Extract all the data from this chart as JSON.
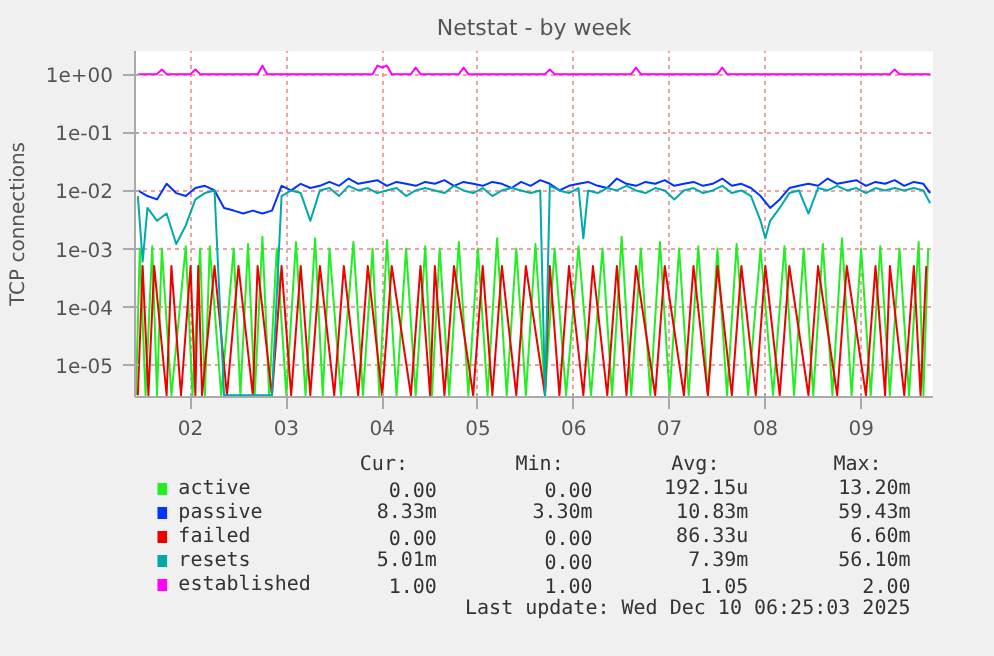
{
  "chart_data": {
    "type": "line",
    "title": "Netstat - by week",
    "ylabel": "TCP connections",
    "log": true,
    "grid": true,
    "legend": "bottom",
    "line_style": "solid",
    "marker": "none",
    "xlim": [
      1.92,
      10.25
    ],
    "xticks": [
      {
        "value": 2.5,
        "label": "02"
      },
      {
        "value": 3.5,
        "label": "03"
      },
      {
        "value": 4.5,
        "label": "04"
      },
      {
        "value": 5.5,
        "label": "05"
      },
      {
        "value": 6.5,
        "label": "06"
      },
      {
        "value": 7.5,
        "label": "07"
      },
      {
        "value": 8.5,
        "label": "08"
      },
      {
        "value": 9.5,
        "label": "09"
      }
    ],
    "ylim": [
      2.8e-06,
      2.5
    ],
    "yticks": [
      {
        "value": 1e-05,
        "label": "1e-05"
      },
      {
        "value": 0.0001,
        "label": "1e-04"
      },
      {
        "value": 0.001,
        "label": "1e-03"
      },
      {
        "value": 0.01,
        "label": "1e-02"
      },
      {
        "value": 0.1,
        "label": "1e-01"
      },
      {
        "value": 1,
        "label": "1e+00"
      }
    ],
    "series": [
      {
        "name": "active",
        "color": "#22ee22",
        "x": [
          1.93,
          1.97,
          2.03,
          2.1,
          2.15,
          2.2,
          2.3,
          2.45,
          2.52,
          2.6,
          2.65,
          2.7,
          2.82,
          2.95,
          3.02,
          3.1,
          3.17,
          3.25,
          3.32,
          3.4,
          3.5,
          3.6,
          3.7,
          3.8,
          3.88,
          3.95,
          4.07,
          4.2,
          4.3,
          4.4,
          4.47,
          4.55,
          4.65,
          4.75,
          4.85,
          4.95,
          5.02,
          5.1,
          5.2,
          5.3,
          5.4,
          5.5,
          5.6,
          5.7,
          5.8,
          5.9,
          6.0,
          6.1,
          6.2,
          6.3,
          6.42,
          6.55,
          6.68,
          6.8,
          6.9,
          7.0,
          7.1,
          7.2,
          7.3,
          7.4,
          7.5,
          7.6,
          7.7,
          7.8,
          7.9,
          8.0,
          8.1,
          8.2,
          8.32,
          8.45,
          8.58,
          8.7,
          8.8,
          8.9,
          9.0,
          9.1,
          9.2,
          9.3,
          9.4,
          9.5,
          9.6,
          9.7,
          9.8,
          9.9,
          10.0,
          10.1,
          10.15,
          10.2
        ],
        "values": [
          3e-06,
          0.001,
          3e-06,
          0.0011,
          3e-06,
          0.001,
          3e-06,
          0.0011,
          3e-06,
          0.001,
          3e-06,
          0.0011,
          3e-06,
          0.001,
          3e-06,
          0.0012,
          3e-06,
          0.0016,
          3e-06,
          0.001,
          3e-06,
          0.0013,
          3e-06,
          0.0015,
          3e-06,
          0.001,
          3e-06,
          0.0013,
          3e-06,
          0.001,
          3e-06,
          0.0014,
          3e-06,
          0.001,
          3e-06,
          0.0011,
          3e-06,
          0.001,
          3e-06,
          0.0013,
          3e-06,
          0.001,
          3e-06,
          0.0015,
          3e-06,
          0.001,
          3e-06,
          0.0012,
          3e-06,
          0.001,
          3e-06,
          0.0011,
          3e-06,
          0.001,
          3e-06,
          0.0016,
          3e-06,
          0.001,
          3e-06,
          0.0013,
          3e-06,
          0.001,
          3e-06,
          0.0011,
          3e-06,
          0.001,
          3e-06,
          0.0012,
          3e-06,
          0.001,
          3e-06,
          0.0011,
          3e-06,
          0.001,
          3e-06,
          0.0012,
          3e-06,
          0.0015,
          3e-06,
          0.001,
          3e-06,
          0.0011,
          3e-06,
          0.001,
          3e-06,
          0.0013,
          3e-06,
          0.001
        ]
      },
      {
        "name": "passive",
        "color": "#0033ff",
        "x": [
          1.95,
          2.05,
          2.15,
          2.25,
          2.35,
          2.45,
          2.55,
          2.65,
          2.75,
          2.85,
          2.95,
          3.05,
          3.15,
          3.25,
          3.35,
          3.45,
          3.55,
          3.65,
          3.75,
          3.85,
          3.95,
          4.05,
          4.15,
          4.25,
          4.35,
          4.45,
          4.55,
          4.65,
          4.75,
          4.85,
          4.95,
          5.05,
          5.15,
          5.25,
          5.35,
          5.45,
          5.55,
          5.65,
          5.75,
          5.85,
          5.95,
          6.05,
          6.15,
          6.25,
          6.35,
          6.45,
          6.55,
          6.65,
          6.75,
          6.85,
          6.95,
          7.05,
          7.15,
          7.25,
          7.35,
          7.45,
          7.55,
          7.65,
          7.75,
          7.85,
          7.95,
          8.05,
          8.15,
          8.25,
          8.35,
          8.45,
          8.55,
          8.65,
          8.75,
          8.85,
          8.95,
          9.05,
          9.15,
          9.25,
          9.35,
          9.45,
          9.55,
          9.65,
          9.75,
          9.85,
          9.95,
          10.05,
          10.15,
          10.22
        ],
        "values": [
          0.01,
          0.008,
          0.007,
          0.013,
          0.009,
          0.008,
          0.011,
          0.012,
          0.01,
          0.005,
          0.0045,
          0.004,
          0.0045,
          0.004,
          0.0045,
          0.012,
          0.01,
          0.013,
          0.011,
          0.012,
          0.014,
          0.012,
          0.016,
          0.013,
          0.014,
          0.015,
          0.012,
          0.014,
          0.013,
          0.012,
          0.014,
          0.013,
          0.015,
          0.012,
          0.014,
          0.013,
          0.012,
          0.014,
          0.013,
          0.011,
          0.014,
          0.012,
          0.015,
          0.013,
          0.01,
          0.012,
          0.013,
          0.014,
          0.012,
          0.011,
          0.016,
          0.013,
          0.012,
          0.014,
          0.013,
          0.015,
          0.012,
          0.013,
          0.014,
          0.012,
          0.013,
          0.016,
          0.012,
          0.013,
          0.011,
          0.008,
          0.005,
          0.007,
          0.011,
          0.012,
          0.013,
          0.012,
          0.016,
          0.013,
          0.014,
          0.015,
          0.012,
          0.014,
          0.013,
          0.015,
          0.012,
          0.014,
          0.013,
          0.009
        ]
      },
      {
        "name": "failed",
        "color": "#ee0000",
        "x": [
          1.95,
          2.0,
          2.06,
          2.12,
          2.25,
          2.3,
          2.4,
          2.5,
          2.55,
          2.58,
          2.62,
          2.75,
          2.88,
          3.0,
          3.15,
          3.2,
          3.35,
          3.45,
          3.55,
          3.65,
          3.75,
          3.85,
          4.0,
          4.1,
          4.25,
          4.35,
          4.5,
          4.6,
          4.8,
          4.9,
          5.0,
          5.05,
          5.15,
          5.25,
          5.45,
          5.55,
          5.65,
          5.75,
          5.9,
          6.0,
          6.2,
          6.25,
          6.35,
          6.45,
          6.6,
          6.7,
          6.85,
          6.95,
          7.05,
          7.15,
          7.35,
          7.45,
          7.65,
          7.75,
          7.9,
          8.0,
          8.15,
          8.25,
          8.4,
          8.5,
          8.65,
          8.75,
          8.95,
          9.05,
          9.25,
          9.35,
          9.55,
          9.65,
          9.75,
          9.8,
          9.95,
          10.05,
          10.12,
          10.18
        ],
        "values": [
          3e-06,
          0.0005,
          3e-06,
          0.0005,
          3e-06,
          0.0005,
          3e-06,
          0.0005,
          3e-06,
          0.0005,
          3e-06,
          0.0005,
          3e-06,
          0.0005,
          3e-06,
          0.0005,
          3e-06,
          0.0005,
          3e-06,
          0.0005,
          3e-06,
          0.0005,
          3e-06,
          0.0005,
          3e-06,
          0.0005,
          3e-06,
          0.0005,
          3e-06,
          0.0005,
          3e-06,
          0.0005,
          3e-06,
          0.0005,
          3e-06,
          0.0005,
          3e-06,
          0.0005,
          3e-06,
          0.0005,
          3e-06,
          0.0005,
          3e-06,
          0.0005,
          3e-06,
          0.0005,
          3e-06,
          0.0005,
          3e-06,
          0.0005,
          3e-06,
          0.0005,
          3e-06,
          0.0005,
          3e-06,
          0.0005,
          3e-06,
          0.0005,
          3e-06,
          0.0005,
          3e-06,
          0.0005,
          3e-06,
          0.0005,
          3e-06,
          0.0005,
          3e-06,
          0.0005,
          3e-06,
          0.0005,
          3e-06,
          0.0005,
          3e-06,
          0.0005
        ]
      },
      {
        "name": "resets",
        "color": "#00aaaa",
        "x": [
          1.95,
          2.0,
          2.05,
          2.15,
          2.25,
          2.35,
          2.45,
          2.55,
          2.65,
          2.75,
          2.85,
          2.95,
          3.05,
          3.15,
          3.25,
          3.35,
          3.45,
          3.55,
          3.65,
          3.75,
          3.85,
          3.95,
          4.05,
          4.15,
          4.25,
          4.35,
          4.45,
          4.55,
          4.65,
          4.75,
          4.85,
          4.95,
          5.05,
          5.15,
          5.25,
          5.35,
          5.45,
          5.55,
          5.65,
          5.75,
          5.85,
          5.95,
          6.05,
          6.15,
          6.2,
          6.25,
          6.35,
          6.45,
          6.55,
          6.6,
          6.65,
          6.75,
          6.85,
          6.95,
          7.05,
          7.15,
          7.25,
          7.35,
          7.45,
          7.55,
          7.65,
          7.75,
          7.85,
          7.95,
          8.05,
          8.15,
          8.25,
          8.35,
          8.45,
          8.5,
          8.55,
          8.65,
          8.75,
          8.85,
          8.95,
          9.05,
          9.15,
          9.25,
          9.35,
          9.45,
          9.55,
          9.65,
          9.75,
          9.85,
          9.95,
          10.05,
          10.15,
          10.22
        ],
        "values": [
          0.008,
          0.0006,
          0.005,
          0.003,
          0.004,
          0.0012,
          0.0025,
          0.007,
          0.009,
          0.01,
          3e-06,
          3e-06,
          3e-06,
          3e-06,
          3e-06,
          3e-06,
          0.008,
          0.01,
          0.009,
          0.003,
          0.01,
          0.011,
          0.008,
          0.012,
          0.01,
          0.011,
          0.009,
          0.01,
          0.011,
          0.008,
          0.01,
          0.011,
          0.01,
          0.009,
          0.012,
          0.01,
          0.009,
          0.011,
          0.008,
          0.01,
          0.011,
          0.01,
          0.009,
          0.01,
          3e-06,
          0.012,
          0.01,
          0.009,
          0.011,
          0.0015,
          0.01,
          0.009,
          0.011,
          0.01,
          0.012,
          0.01,
          0.009,
          0.011,
          0.01,
          0.007,
          0.01,
          0.011,
          0.009,
          0.01,
          0.012,
          0.009,
          0.01,
          0.008,
          0.003,
          0.0015,
          0.003,
          0.005,
          0.009,
          0.01,
          0.004,
          0.011,
          0.01,
          0.012,
          0.01,
          0.011,
          0.009,
          0.011,
          0.01,
          0.011,
          0.01,
          0.011,
          0.01,
          0.006
        ]
      },
      {
        "name": "established",
        "color": "#ff00ff",
        "x": [
          1.95,
          2.15,
          2.2,
          2.25,
          2.5,
          2.55,
          2.6,
          2.9,
          3.2,
          3.25,
          3.3,
          3.6,
          3.8,
          4.0,
          4.4,
          4.45,
          4.5,
          4.55,
          4.6,
          4.8,
          4.85,
          4.9,
          5.3,
          5.35,
          5.4,
          5.7,
          6.2,
          6.25,
          6.3,
          6.5,
          7.1,
          7.15,
          7.2,
          7.5,
          8.0,
          8.05,
          8.1,
          8.4,
          8.8,
          9.3,
          9.8,
          9.85,
          9.9,
          10.22
        ],
        "values": [
          1,
          1,
          1.2,
          1,
          1,
          1.2,
          1,
          1,
          1,
          1.4,
          1,
          1,
          1,
          1,
          1,
          1.4,
          1.3,
          1.4,
          1,
          1,
          1.3,
          1,
          1,
          1.3,
          1,
          1,
          1,
          1.2,
          1,
          1,
          1,
          1.3,
          1,
          1,
          1,
          1.3,
          1,
          1,
          1,
          1,
          1,
          1.2,
          1,
          1
        ]
      }
    ],
    "annotations": [
      "Cur:",
      "Min:",
      "Avg:",
      "Max:",
      "0.00",
      "0.00",
      "192.15u",
      "13.20m",
      "8.33m",
      "3.30m",
      "10.83m",
      "59.43m",
      "0.00",
      "0.00",
      "86.33u",
      "6.60m",
      "5.01m",
      "0.00",
      "7.39m",
      "56.10m",
      "1.00",
      "1.00",
      "1.05",
      "2.00",
      "Last update: Wed Dec 10 06:25:03 2025"
    ]
  }
}
